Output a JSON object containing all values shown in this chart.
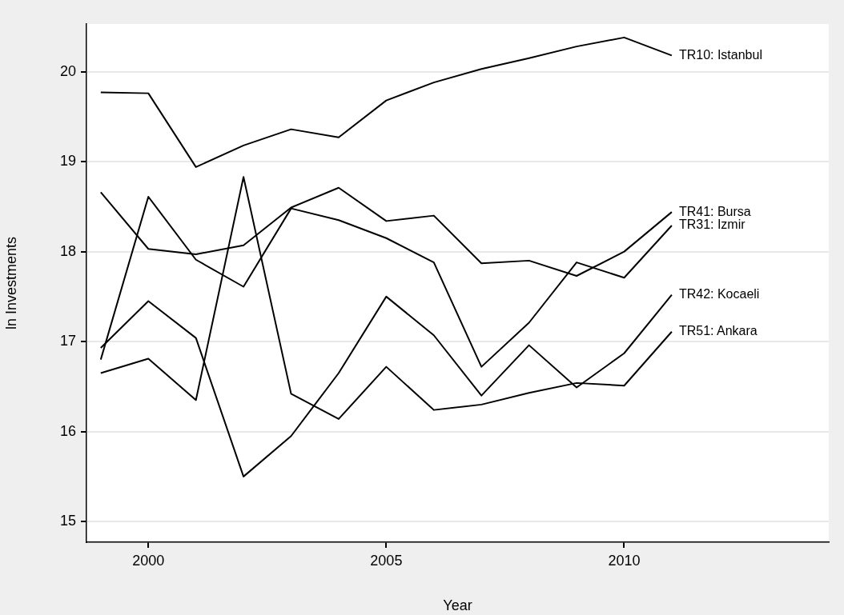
{
  "chart_data": {
    "type": "line",
    "xlabel": "Year",
    "ylabel": "ln Investments",
    "x": [
      1999,
      2000,
      2001,
      2002,
      2003,
      2004,
      2005,
      2006,
      2007,
      2008,
      2009,
      2010,
      2011
    ],
    "series": [
      {
        "name": "TR10: Istanbul",
        "color": "#000000",
        "values": [
          19.77,
          19.76,
          18.94,
          19.18,
          19.36,
          19.27,
          19.68,
          19.88,
          20.03,
          20.15,
          20.28,
          20.38,
          20.18
        ]
      },
      {
        "name": "TR41: Bursa",
        "color": "#000000",
        "values": [
          18.66,
          18.03,
          17.97,
          18.07,
          18.49,
          18.71,
          18.34,
          18.4,
          17.87,
          17.9,
          17.73,
          18.0,
          18.44
        ]
      },
      {
        "name": "TR31: Izmir",
        "color": "#000000",
        "values": [
          16.8,
          18.61,
          17.91,
          17.61,
          18.48,
          18.35,
          18.15,
          17.88,
          16.72,
          17.21,
          17.88,
          17.71,
          18.29
        ]
      },
      {
        "name": "TR42: Kocaeli",
        "color": "#000000",
        "values": [
          16.93,
          17.45,
          17.04,
          15.5,
          15.95,
          16.65,
          17.5,
          17.07,
          16.4,
          16.96,
          16.49,
          16.87,
          17.52
        ]
      },
      {
        "name": "TR51: Ankara",
        "color": "#000000",
        "values": [
          16.65,
          16.81,
          16.35,
          18.83,
          16.42,
          16.14,
          16.72,
          16.24,
          16.3,
          16.43,
          16.54,
          16.51,
          17.11
        ]
      }
    ],
    "xlim": [
      1998.7,
      2014.3
    ],
    "xticks": [
      2000,
      2005,
      2010
    ],
    "ylim": [
      14.77,
      20.53
    ],
    "yticks": [
      15,
      16,
      17,
      18,
      19,
      20
    ],
    "grid": "y",
    "legend": false,
    "marker": "none",
    "line_style": "solid"
  }
}
